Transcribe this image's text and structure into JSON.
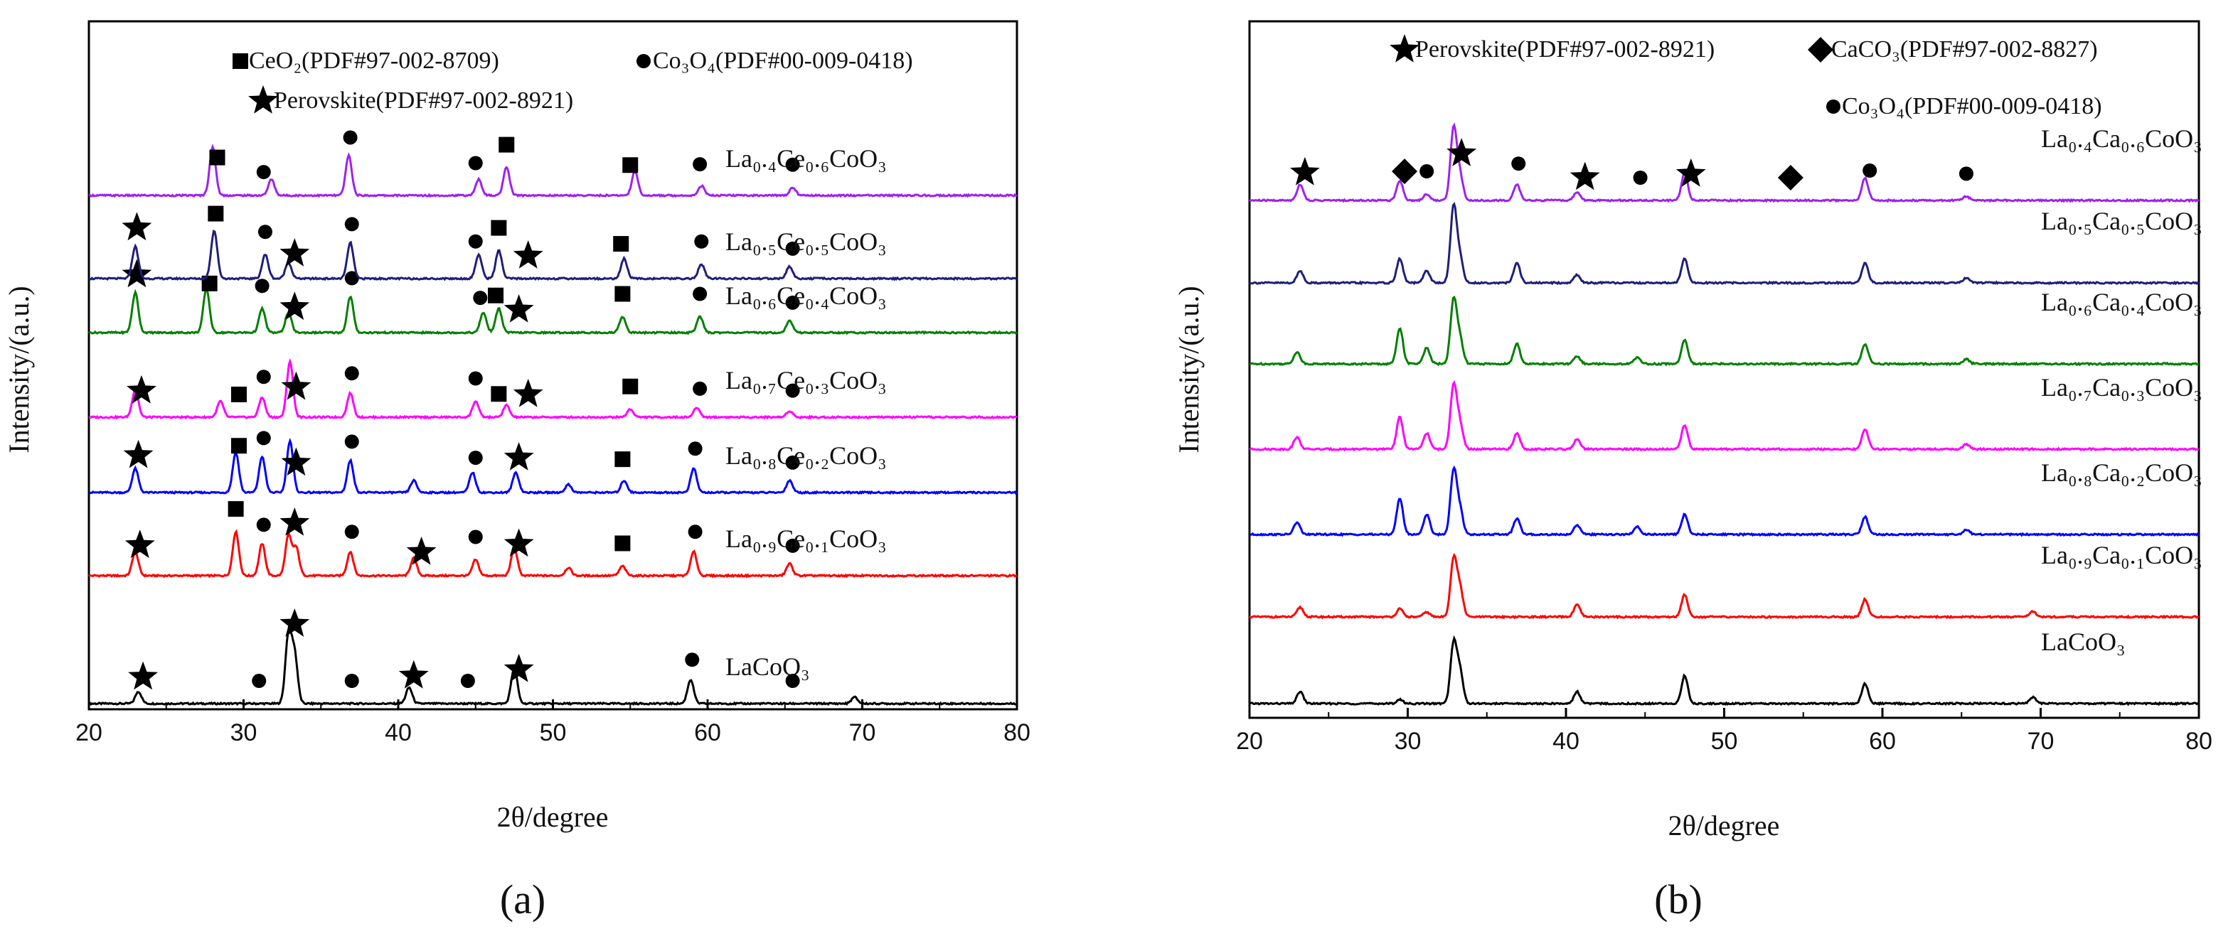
{
  "chart_data": [
    {
      "panel_label": "(a)",
      "type": "line",
      "xlabel": "2θ/degree",
      "ylabel": "Intensity/(a.u.)",
      "xlim": [
        20,
        80
      ],
      "xticks": [
        "20",
        "30",
        "40",
        "50",
        "60",
        "70",
        "80"
      ],
      "legend": [
        {
          "symbol": "■",
          "text": "CeO₂(PDF#97-002-8709)"
        },
        {
          "symbol": "●",
          "text": "Co₃O₄(PDF#00-009-0418)"
        },
        {
          "symbol": "★",
          "text": "Perovskite(PDF#97-002-8921)"
        }
      ],
      "series": [
        {
          "name": "LaCoO₃",
          "color": "#000000",
          "peaks": [
            [
              23.2,
              0.15
            ],
            [
              32.9,
              0.85
            ],
            [
              33.3,
              0.6
            ],
            [
              40.7,
              0.2
            ],
            [
              47.5,
              0.45
            ],
            [
              58.9,
              0.3
            ],
            [
              69.5,
              0.08
            ]
          ],
          "markers": [
            {
              "x": 23.5,
              "m": "star"
            },
            {
              "x": 31.0,
              "m": "circle"
            },
            {
              "x": 33.3,
              "m": "star"
            },
            {
              "x": 37.0,
              "m": "circle"
            },
            {
              "x": 41.0,
              "m": "star"
            },
            {
              "x": 44.5,
              "m": "circle"
            },
            {
              "x": 47.8,
              "m": "star"
            },
            {
              "x": 59.0,
              "m": "circle"
            },
            {
              "x": 65.5,
              "m": "circle"
            }
          ]
        },
        {
          "name": "La₀.₉Ce₀.₁CoO₃",
          "color": "#ff0000",
          "peaks": [
            [
              23.0,
              0.3
            ],
            [
              29.5,
              0.55
            ],
            [
              31.2,
              0.4
            ],
            [
              32.9,
              0.5
            ],
            [
              33.4,
              0.35
            ],
            [
              36.9,
              0.3
            ],
            [
              41.0,
              0.22
            ],
            [
              45.0,
              0.2
            ],
            [
              47.5,
              0.35
            ],
            [
              51.0,
              0.1
            ],
            [
              54.5,
              0.12
            ],
            [
              59.1,
              0.3
            ],
            [
              65.3,
              0.15
            ]
          ],
          "markers": [
            {
              "x": 23.3,
              "m": "star"
            },
            {
              "x": 29.5,
              "m": "square"
            },
            {
              "x": 31.3,
              "m": "circle"
            },
            {
              "x": 33.3,
              "m": "star"
            },
            {
              "x": 37.0,
              "m": "circle"
            },
            {
              "x": 41.5,
              "m": "star"
            },
            {
              "x": 45.0,
              "m": "circle"
            },
            {
              "x": 47.8,
              "m": "star"
            },
            {
              "x": 54.5,
              "m": "square"
            },
            {
              "x": 59.2,
              "m": "circle"
            },
            {
              "x": 65.5,
              "m": "circle"
            }
          ]
        },
        {
          "name": "La₀.₈Ce₀.₂CoO₃",
          "color": "#0000ff",
          "peaks": [
            [
              23.0,
              0.3
            ],
            [
              29.5,
              0.5
            ],
            [
              31.2,
              0.45
            ],
            [
              33.0,
              0.65
            ],
            [
              36.9,
              0.4
            ],
            [
              41.0,
              0.15
            ],
            [
              44.8,
              0.25
            ],
            [
              47.6,
              0.25
            ],
            [
              51.0,
              0.1
            ],
            [
              54.6,
              0.15
            ],
            [
              59.1,
              0.3
            ],
            [
              65.3,
              0.15
            ]
          ],
          "markers": [
            {
              "x": 23.2,
              "m": "star"
            },
            {
              "x": 29.7,
              "m": "square"
            },
            {
              "x": 31.3,
              "m": "circle"
            },
            {
              "x": 33.4,
              "m": "star"
            },
            {
              "x": 37.0,
              "m": "circle"
            },
            {
              "x": 45.0,
              "m": "circle"
            },
            {
              "x": 47.8,
              "m": "star"
            },
            {
              "x": 54.5,
              "m": "square"
            },
            {
              "x": 59.2,
              "m": "circle"
            },
            {
              "x": 65.5,
              "m": "circle"
            }
          ]
        },
        {
          "name": "La₀.₇Ce₀.₃CoO₃",
          "color": "#ff00ff",
          "peaks": [
            [
              23.0,
              0.35
            ],
            [
              28.5,
              0.2
            ],
            [
              31.2,
              0.25
            ],
            [
              33.0,
              0.7
            ],
            [
              36.9,
              0.3
            ],
            [
              45.0,
              0.2
            ],
            [
              47.0,
              0.15
            ],
            [
              55.0,
              0.1
            ],
            [
              59.3,
              0.12
            ],
            [
              65.3,
              0.08
            ]
          ],
          "markers": [
            {
              "x": 23.4,
              "m": "star"
            },
            {
              "x": 29.7,
              "m": "square"
            },
            {
              "x": 31.3,
              "m": "circle"
            },
            {
              "x": 33.4,
              "m": "star"
            },
            {
              "x": 37.0,
              "m": "circle"
            },
            {
              "x": 45.0,
              "m": "circle"
            },
            {
              "x": 46.5,
              "m": "square"
            },
            {
              "x": 48.4,
              "m": "star"
            },
            {
              "x": 55.0,
              "m": "square"
            },
            {
              "x": 59.5,
              "m": "circle"
            },
            {
              "x": 65.5,
              "m": "circle"
            }
          ]
        },
        {
          "name": "La₀.₆Ce₀.₄CoO₃",
          "color": "#008000",
          "peaks": [
            [
              23.0,
              0.5
            ],
            [
              27.6,
              0.55
            ],
            [
              31.2,
              0.3
            ],
            [
              32.9,
              0.25
            ],
            [
              36.9,
              0.45
            ],
            [
              45.5,
              0.25
            ],
            [
              46.5,
              0.3
            ],
            [
              54.5,
              0.2
            ],
            [
              59.5,
              0.2
            ],
            [
              65.3,
              0.15
            ]
          ],
          "markers": [
            {
              "x": 23.1,
              "m": "star"
            },
            {
              "x": 27.8,
              "m": "square"
            },
            {
              "x": 31.2,
              "m": "circle"
            },
            {
              "x": 33.3,
              "m": "star"
            },
            {
              "x": 37.0,
              "m": "circle"
            },
            {
              "x": 45.3,
              "m": "circle"
            },
            {
              "x": 46.3,
              "m": "square"
            },
            {
              "x": 47.8,
              "m": "star"
            },
            {
              "x": 54.5,
              "m": "square"
            },
            {
              "x": 59.5,
              "m": "circle"
            },
            {
              "x": 65.5,
              "m": "circle"
            }
          ]
        },
        {
          "name": "La₀.₅Ce₀.₅CoO₃",
          "color": "#1f1f7a",
          "peaks": [
            [
              23.0,
              0.4
            ],
            [
              28.1,
              0.6
            ],
            [
              31.4,
              0.3
            ],
            [
              32.9,
              0.2
            ],
            [
              36.9,
              0.45
            ],
            [
              45.2,
              0.3
            ],
            [
              46.5,
              0.35
            ],
            [
              54.6,
              0.25
            ],
            [
              59.6,
              0.18
            ],
            [
              65.3,
              0.15
            ]
          ],
          "markers": [
            {
              "x": 23.1,
              "m": "star"
            },
            {
              "x": 28.2,
              "m": "square"
            },
            {
              "x": 31.4,
              "m": "circle"
            },
            {
              "x": 33.3,
              "m": "star"
            },
            {
              "x": 37.0,
              "m": "circle"
            },
            {
              "x": 45.0,
              "m": "circle"
            },
            {
              "x": 46.5,
              "m": "square"
            },
            {
              "x": 48.4,
              "m": "star"
            },
            {
              "x": 54.4,
              "m": "square"
            },
            {
              "x": 59.6,
              "m": "circle"
            },
            {
              "x": 65.5,
              "m": "circle"
            }
          ]
        },
        {
          "name": "La₀.₄Ce₀.₆CoO₃",
          "color": "#a020f0",
          "peaks": [
            [
              28.0,
              0.6
            ],
            [
              31.8,
              0.2
            ],
            [
              36.8,
              0.5
            ],
            [
              45.2,
              0.2
            ],
            [
              47.0,
              0.35
            ],
            [
              55.3,
              0.3
            ],
            [
              59.6,
              0.12
            ],
            [
              65.5,
              0.1
            ]
          ],
          "markers": [
            {
              "x": 28.3,
              "m": "square"
            },
            {
              "x": 31.3,
              "m": "circle"
            },
            {
              "x": 36.9,
              "m": "circle"
            },
            {
              "x": 45.0,
              "m": "circle"
            },
            {
              "x": 47.0,
              "m": "square"
            },
            {
              "x": 55.0,
              "m": "square"
            },
            {
              "x": 59.5,
              "m": "circle"
            },
            {
              "x": 65.5,
              "m": "circle"
            }
          ]
        }
      ]
    },
    {
      "panel_label": "(b)",
      "type": "line",
      "xlabel": "2θ/degree",
      "ylabel": "Intensity/(a.u.)",
      "xlim": [
        20,
        80
      ],
      "xticks": [
        "20",
        "30",
        "40",
        "50",
        "60",
        "70",
        "80"
      ],
      "legend": [
        {
          "symbol": "★",
          "text": "Perovskite(PDF#97-002-8921)"
        },
        {
          "symbol": "◆",
          "text": "CaCO₃(PDF#97-002-8827)"
        },
        {
          "symbol": "●",
          "text": "Co₃O₄(PDF#00-009-0418)"
        }
      ],
      "series": [
        {
          "name": "LaCoO₃",
          "color": "#000000",
          "peaks": [
            [
              23.2,
              0.15
            ],
            [
              29.5,
              0.05
            ],
            [
              32.9,
              0.75
            ],
            [
              33.3,
              0.4
            ],
            [
              40.7,
              0.15
            ],
            [
              47.5,
              0.35
            ],
            [
              58.9,
              0.25
            ],
            [
              69.5,
              0.08
            ]
          ],
          "markers": []
        },
        {
          "name": "La₀.₉Ca₀.₁CoO₃",
          "color": "#ff0000",
          "peaks": [
            [
              23.2,
              0.12
            ],
            [
              29.5,
              0.1
            ],
            [
              31.2,
              0.06
            ],
            [
              32.9,
              0.72
            ],
            [
              33.3,
              0.35
            ],
            [
              40.7,
              0.15
            ],
            [
              47.5,
              0.28
            ],
            [
              58.9,
              0.22
            ],
            [
              69.5,
              0.07
            ]
          ],
          "markers": []
        },
        {
          "name": "La₀.₈Ca₀.₂CoO₃",
          "color": "#0000ff",
          "peaks": [
            [
              23.0,
              0.15
            ],
            [
              29.5,
              0.45
            ],
            [
              31.2,
              0.25
            ],
            [
              32.9,
              0.8
            ],
            [
              33.3,
              0.3
            ],
            [
              36.9,
              0.2
            ],
            [
              40.7,
              0.12
            ],
            [
              44.5,
              0.1
            ],
            [
              47.5,
              0.25
            ],
            [
              58.9,
              0.22
            ],
            [
              65.3,
              0.06
            ]
          ],
          "markers": []
        },
        {
          "name": "La₀.₇Ca₀.₃CoO₃",
          "color": "#ff00ff",
          "peaks": [
            [
              23.0,
              0.15
            ],
            [
              29.5,
              0.4
            ],
            [
              31.2,
              0.2
            ],
            [
              32.9,
              0.8
            ],
            [
              33.3,
              0.3
            ],
            [
              36.9,
              0.2
            ],
            [
              40.7,
              0.12
            ],
            [
              47.5,
              0.3
            ],
            [
              58.9,
              0.25
            ],
            [
              65.3,
              0.06
            ]
          ],
          "markers": []
        },
        {
          "name": "La₀.₆Ca₀.₄CoO₃",
          "color": "#008000",
          "peaks": [
            [
              23.0,
              0.15
            ],
            [
              29.5,
              0.45
            ],
            [
              31.2,
              0.2
            ],
            [
              32.9,
              0.8
            ],
            [
              33.3,
              0.3
            ],
            [
              36.9,
              0.25
            ],
            [
              40.7,
              0.1
            ],
            [
              44.5,
              0.08
            ],
            [
              47.5,
              0.3
            ],
            [
              58.9,
              0.25
            ],
            [
              65.3,
              0.06
            ]
          ],
          "markers": []
        },
        {
          "name": "La₀.₅Ca₀.₅CoO₃",
          "color": "#1f1f7a",
          "peaks": [
            [
              23.2,
              0.15
            ],
            [
              29.5,
              0.3
            ],
            [
              31.2,
              0.15
            ],
            [
              32.9,
              0.95
            ],
            [
              33.3,
              0.3
            ],
            [
              36.9,
              0.25
            ],
            [
              40.7,
              0.1
            ],
            [
              47.5,
              0.3
            ],
            [
              58.9,
              0.25
            ],
            [
              65.3,
              0.06
            ]
          ],
          "markers": []
        },
        {
          "name": "La₀.₄Ca₀.₆CoO₃",
          "color": "#a020f0",
          "peaks": [
            [
              23.2,
              0.2
            ],
            [
              29.5,
              0.25
            ],
            [
              31.2,
              0.08
            ],
            [
              32.9,
              0.9
            ],
            [
              33.3,
              0.3
            ],
            [
              36.9,
              0.2
            ],
            [
              40.7,
              0.1
            ],
            [
              47.5,
              0.35
            ],
            [
              58.9,
              0.28
            ],
            [
              65.3,
              0.05
            ]
          ],
          "markers": [
            {
              "x": 23.5,
              "m": "star"
            },
            {
              "x": 29.8,
              "m": "diamond"
            },
            {
              "x": 31.2,
              "m": "circle"
            },
            {
              "x": 33.4,
              "m": "star"
            },
            {
              "x": 37.0,
              "m": "circle"
            },
            {
              "x": 41.2,
              "m": "star"
            },
            {
              "x": 44.7,
              "m": "circle"
            },
            {
              "x": 47.9,
              "m": "star"
            },
            {
              "x": 54.2,
              "m": "diamond"
            },
            {
              "x": 59.2,
              "m": "circle"
            },
            {
              "x": 65.3,
              "m": "circle"
            }
          ]
        }
      ]
    }
  ]
}
